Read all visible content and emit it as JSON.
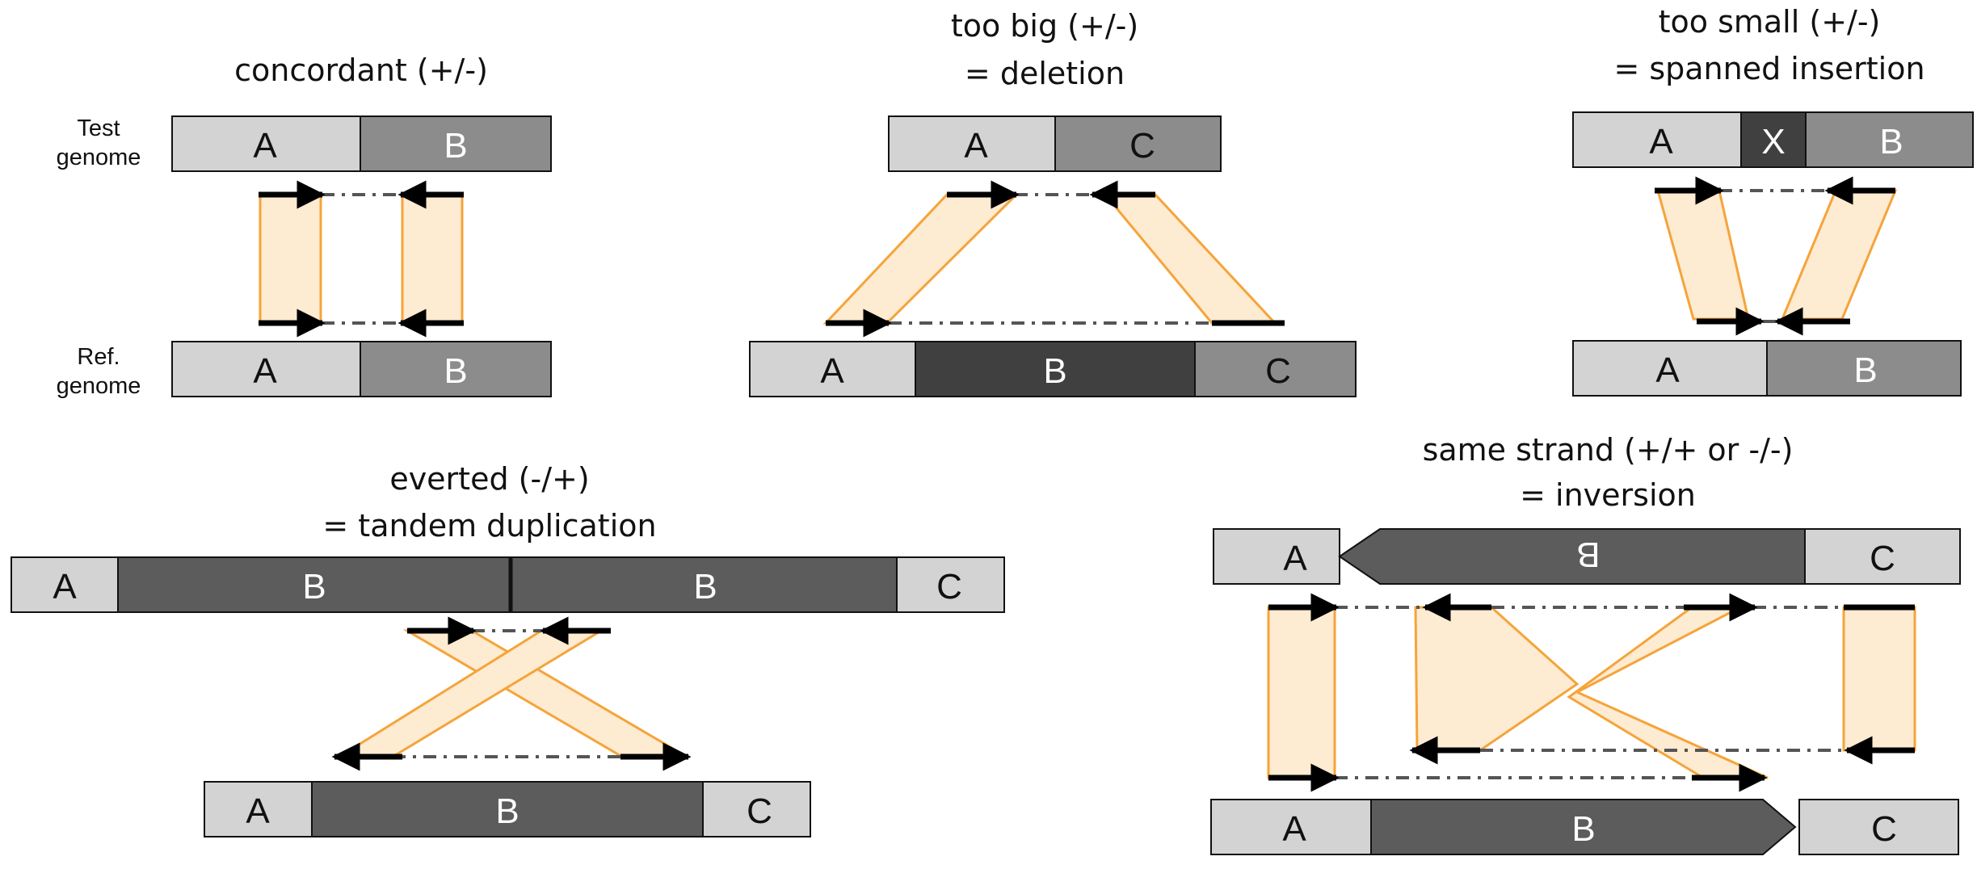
{
  "colors": {
    "light_segment": "#d3d3d3",
    "mid_segment": "#8c8c8c",
    "dark_segment": "#5c5c5c",
    "darkest_segment": "#404040",
    "read_link_fill": "#fdebd2",
    "read_link_stroke": "#f5a43a",
    "read_arrow": "#000000",
    "mate_link": "#555555"
  },
  "panels": {
    "concordant": {
      "title": "concordant (+/-)",
      "test_label": [
        "Test",
        "genome"
      ],
      "ref_label": [
        "Ref.",
        "genome"
      ],
      "test_segments": [
        "A",
        "B"
      ],
      "ref_segments": [
        "A",
        "B"
      ]
    },
    "deletion": {
      "title_lines": [
        "too big (+/-)",
        "= deletion"
      ],
      "test_segments": [
        "A",
        "C"
      ],
      "ref_segments": [
        "A",
        "B",
        "C"
      ]
    },
    "insertion": {
      "title_lines": [
        "too small (+/-)",
        "= spanned insertion"
      ],
      "test_segments": [
        "A",
        "X",
        "B"
      ],
      "ref_segments": [
        "A",
        "B"
      ]
    },
    "duplication": {
      "title_lines": [
        "everted (-/+)",
        "= tandem duplication"
      ],
      "test_segments": [
        "A",
        "B",
        "B",
        "C"
      ],
      "ref_segments": [
        "A",
        "B",
        "C"
      ]
    },
    "inversion": {
      "title_lines": [
        "same strand (+/+ or -/-)",
        "= inversion"
      ],
      "test_segments": [
        "A",
        "B",
        "C"
      ],
      "ref_segments": [
        "A",
        "B",
        "C"
      ]
    }
  }
}
